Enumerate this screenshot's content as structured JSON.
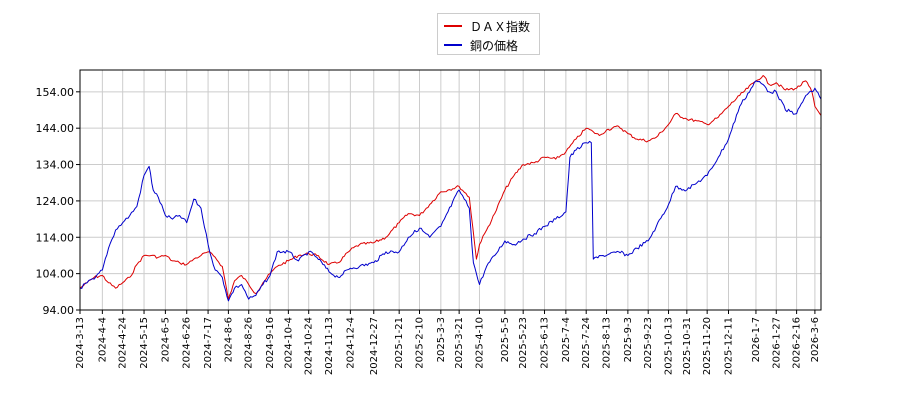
{
  "chart_data": {
    "type": "line",
    "ylim": [
      94,
      160
    ],
    "yticks": [
      "94.00",
      "104.00",
      "114.00",
      "124.00",
      "134.00",
      "144.00",
      "154.00"
    ],
    "ytick_values": [
      94,
      104,
      114,
      124,
      134,
      144,
      154
    ],
    "xticks": [
      "2024-3-13",
      "2024-4-4",
      "2024-4-24",
      "2024-5-15",
      "2024-6-5",
      "2024-6-26",
      "2024-7-17",
      "2024-8-6",
      "2024-8-26",
      "2024-9-16",
      "2024-10-4",
      "2024-10-24",
      "2024-11-13",
      "2024-12-4",
      "2024-12-27",
      "2025-1-21",
      "2025-2-10",
      "2025-3-3",
      "2025-3-21",
      "2025-4-10",
      "2025-5-5",
      "2025-5-23",
      "2025-6-13",
      "2025-7-4",
      "2025-7-24",
      "2025-8-13",
      "2025-9-3",
      "2025-9-23",
      "2025-10-13",
      "2025-10-31",
      "2025-11-20",
      "2025-12-11",
      "2026-1-7",
      "2026-1-27",
      "2026-2-16",
      "2026-3-6"
    ],
    "x_start": "2024-3-13",
    "x_end": "2026-3-12",
    "grid": true,
    "legend_position": "top-center",
    "series": [
      {
        "name": "ＤＡＸ指数",
        "color": "#dd0000",
        "points": [
          [
            "2024-03-13",
            100.0
          ],
          [
            "2024-03-20",
            101.5
          ],
          [
            "2024-03-27",
            103.0
          ],
          [
            "2024-04-04",
            103.5
          ],
          [
            "2024-04-10",
            101.5
          ],
          [
            "2024-04-17",
            100.0
          ],
          [
            "2024-04-24",
            101.5
          ],
          [
            "2024-05-01",
            103.0
          ],
          [
            "2024-05-08",
            106.5
          ],
          [
            "2024-05-15",
            109.0
          ],
          [
            "2024-05-22",
            109.0
          ],
          [
            "2024-05-29",
            108.5
          ],
          [
            "2024-06-05",
            109.0
          ],
          [
            "2024-06-12",
            107.5
          ],
          [
            "2024-06-19",
            107.0
          ],
          [
            "2024-06-26",
            106.5
          ],
          [
            "2024-07-03",
            108.0
          ],
          [
            "2024-07-10",
            109.0
          ],
          [
            "2024-07-17",
            110.0
          ],
          [
            "2024-07-24",
            108.5
          ],
          [
            "2024-07-31",
            106.0
          ],
          [
            "2024-08-06",
            97.0
          ],
          [
            "2024-08-12",
            102.0
          ],
          [
            "2024-08-19",
            103.5
          ],
          [
            "2024-08-26",
            101.0
          ],
          [
            "2024-09-02",
            98.5
          ],
          [
            "2024-09-09",
            101.5
          ],
          [
            "2024-09-16",
            104.0
          ],
          [
            "2024-09-23",
            106.0
          ],
          [
            "2024-10-04",
            107.5
          ],
          [
            "2024-10-14",
            109.0
          ],
          [
            "2024-10-24",
            109.5
          ],
          [
            "2024-11-01",
            109.0
          ],
          [
            "2024-11-13",
            106.5
          ],
          [
            "2024-11-22",
            107.0
          ],
          [
            "2024-12-04",
            110.5
          ],
          [
            "2024-12-13",
            112.0
          ],
          [
            "2024-12-27",
            112.5
          ],
          [
            "2025-01-08",
            114.0
          ],
          [
            "2025-01-21",
            118.0
          ],
          [
            "2025-01-30",
            120.5
          ],
          [
            "2025-02-10",
            120.0
          ],
          [
            "2025-02-20",
            123.0
          ],
          [
            "2025-03-03",
            126.5
          ],
          [
            "2025-03-10",
            127.0
          ],
          [
            "2025-03-21",
            128.0
          ],
          [
            "2025-03-31",
            125.0
          ],
          [
            "2025-04-07",
            108.0
          ],
          [
            "2025-04-10",
            112.0
          ],
          [
            "2025-04-17",
            116.0
          ],
          [
            "2025-04-25",
            120.5
          ],
          [
            "2025-05-05",
            127.0
          ],
          [
            "2025-05-14",
            131.0
          ],
          [
            "2025-05-23",
            134.0
          ],
          [
            "2025-06-03",
            134.5
          ],
          [
            "2025-06-13",
            136.0
          ],
          [
            "2025-06-24",
            135.5
          ],
          [
            "2025-07-04",
            137.5
          ],
          [
            "2025-07-14",
            141.0
          ],
          [
            "2025-07-24",
            144.0
          ],
          [
            "2025-07-31",
            143.0
          ],
          [
            "2025-08-06",
            142.0
          ],
          [
            "2025-08-13",
            143.5
          ],
          [
            "2025-08-25",
            144.5
          ],
          [
            "2025-09-03",
            142.5
          ],
          [
            "2025-09-12",
            141.0
          ],
          [
            "2025-09-23",
            140.5
          ],
          [
            "2025-10-01",
            141.5
          ],
          [
            "2025-10-13",
            145.0
          ],
          [
            "2025-10-20",
            148.0
          ],
          [
            "2025-10-31",
            146.5
          ],
          [
            "2025-11-10",
            146.0
          ],
          [
            "2025-11-20",
            145.0
          ],
          [
            "2025-12-01",
            147.0
          ],
          [
            "2025-12-11",
            150.0
          ],
          [
            "2025-12-22",
            153.0
          ],
          [
            "2026-01-07",
            157.0
          ],
          [
            "2026-01-14",
            158.5
          ],
          [
            "2026-01-20",
            156.0
          ],
          [
            "2026-01-27",
            156.5
          ],
          [
            "2026-02-05",
            154.5
          ],
          [
            "2026-02-16",
            155.0
          ],
          [
            "2026-02-25",
            157.0
          ],
          [
            "2026-03-03",
            154.0
          ],
          [
            "2026-03-06",
            150.0
          ],
          [
            "2026-03-12",
            147.5
          ]
        ]
      },
      {
        "name": "銅の価格",
        "color": "#0000cc",
        "points": [
          [
            "2024-03-13",
            100.0
          ],
          [
            "2024-03-20",
            101.5
          ],
          [
            "2024-03-27",
            102.5
          ],
          [
            "2024-04-04",
            105.0
          ],
          [
            "2024-04-10",
            111.0
          ],
          [
            "2024-04-17",
            116.0
          ],
          [
            "2024-04-24",
            118.0
          ],
          [
            "2024-05-01",
            120.0
          ],
          [
            "2024-05-08",
            122.5
          ],
          [
            "2024-05-15",
            131.0
          ],
          [
            "2024-05-20",
            133.5
          ],
          [
            "2024-05-24",
            127.0
          ],
          [
            "2024-05-29",
            125.0
          ],
          [
            "2024-06-05",
            120.0
          ],
          [
            "2024-06-12",
            119.0
          ],
          [
            "2024-06-19",
            120.0
          ],
          [
            "2024-06-26",
            118.0
          ],
          [
            "2024-07-03",
            124.5
          ],
          [
            "2024-07-10",
            122.0
          ],
          [
            "2024-07-17",
            112.0
          ],
          [
            "2024-07-24",
            105.0
          ],
          [
            "2024-07-31",
            103.0
          ],
          [
            "2024-08-06",
            96.5
          ],
          [
            "2024-08-12",
            100.0
          ],
          [
            "2024-08-19",
            101.0
          ],
          [
            "2024-08-26",
            97.0
          ],
          [
            "2024-09-02",
            98.0
          ],
          [
            "2024-09-09",
            101.0
          ],
          [
            "2024-09-16",
            103.5
          ],
          [
            "2024-09-23",
            110.0
          ],
          [
            "2024-10-04",
            110.0
          ],
          [
            "2024-10-14",
            107.5
          ],
          [
            "2024-10-24",
            110.0
          ],
          [
            "2024-11-01",
            108.5
          ],
          [
            "2024-11-13",
            104.5
          ],
          [
            "2024-11-22",
            103.0
          ],
          [
            "2024-12-04",
            105.5
          ],
          [
            "2024-12-13",
            106.0
          ],
          [
            "2024-12-27",
            107.0
          ],
          [
            "2025-01-08",
            110.0
          ],
          [
            "2025-01-21",
            110.0
          ],
          [
            "2025-01-30",
            114.0
          ],
          [
            "2025-02-10",
            116.5
          ],
          [
            "2025-02-20",
            114.0
          ],
          [
            "2025-03-03",
            117.0
          ],
          [
            "2025-03-10",
            121.0
          ],
          [
            "2025-03-21",
            127.0
          ],
          [
            "2025-03-31",
            122.0
          ],
          [
            "2025-04-04",
            107.0
          ],
          [
            "2025-04-10",
            101.0
          ],
          [
            "2025-04-17",
            106.0
          ],
          [
            "2025-04-25",
            109.0
          ],
          [
            "2025-05-05",
            113.0
          ],
          [
            "2025-05-14",
            112.0
          ],
          [
            "2025-05-23",
            113.5
          ],
          [
            "2025-06-03",
            115.0
          ],
          [
            "2025-06-13",
            117.0
          ],
          [
            "2025-06-24",
            119.0
          ],
          [
            "2025-07-04",
            121.0
          ],
          [
            "2025-07-08",
            136.0
          ],
          [
            "2025-07-14",
            138.0
          ],
          [
            "2025-07-24",
            140.0
          ],
          [
            "2025-07-29",
            140.0
          ],
          [
            "2025-07-31",
            108.0
          ],
          [
            "2025-08-06",
            109.0
          ],
          [
            "2025-08-13",
            109.0
          ],
          [
            "2025-08-25",
            110.0
          ],
          [
            "2025-09-03",
            109.0
          ],
          [
            "2025-09-12",
            111.0
          ],
          [
            "2025-09-23",
            113.0
          ],
          [
            "2025-10-01",
            117.0
          ],
          [
            "2025-10-13",
            123.0
          ],
          [
            "2025-10-20",
            128.0
          ],
          [
            "2025-10-31",
            127.0
          ],
          [
            "2025-11-10",
            129.0
          ],
          [
            "2025-11-20",
            131.0
          ],
          [
            "2025-12-01",
            136.0
          ],
          [
            "2025-12-11",
            141.0
          ],
          [
            "2025-12-22",
            150.0
          ],
          [
            "2026-01-07",
            157.0
          ],
          [
            "2026-01-14",
            156.0
          ],
          [
            "2026-01-20",
            154.0
          ],
          [
            "2026-01-27",
            154.0
          ],
          [
            "2026-02-05",
            149.0
          ],
          [
            "2026-02-16",
            148.0
          ],
          [
            "2026-02-25",
            153.0
          ],
          [
            "2026-03-03",
            154.0
          ],
          [
            "2026-03-06",
            155.0
          ],
          [
            "2026-03-12",
            152.0
          ]
        ]
      }
    ]
  }
}
